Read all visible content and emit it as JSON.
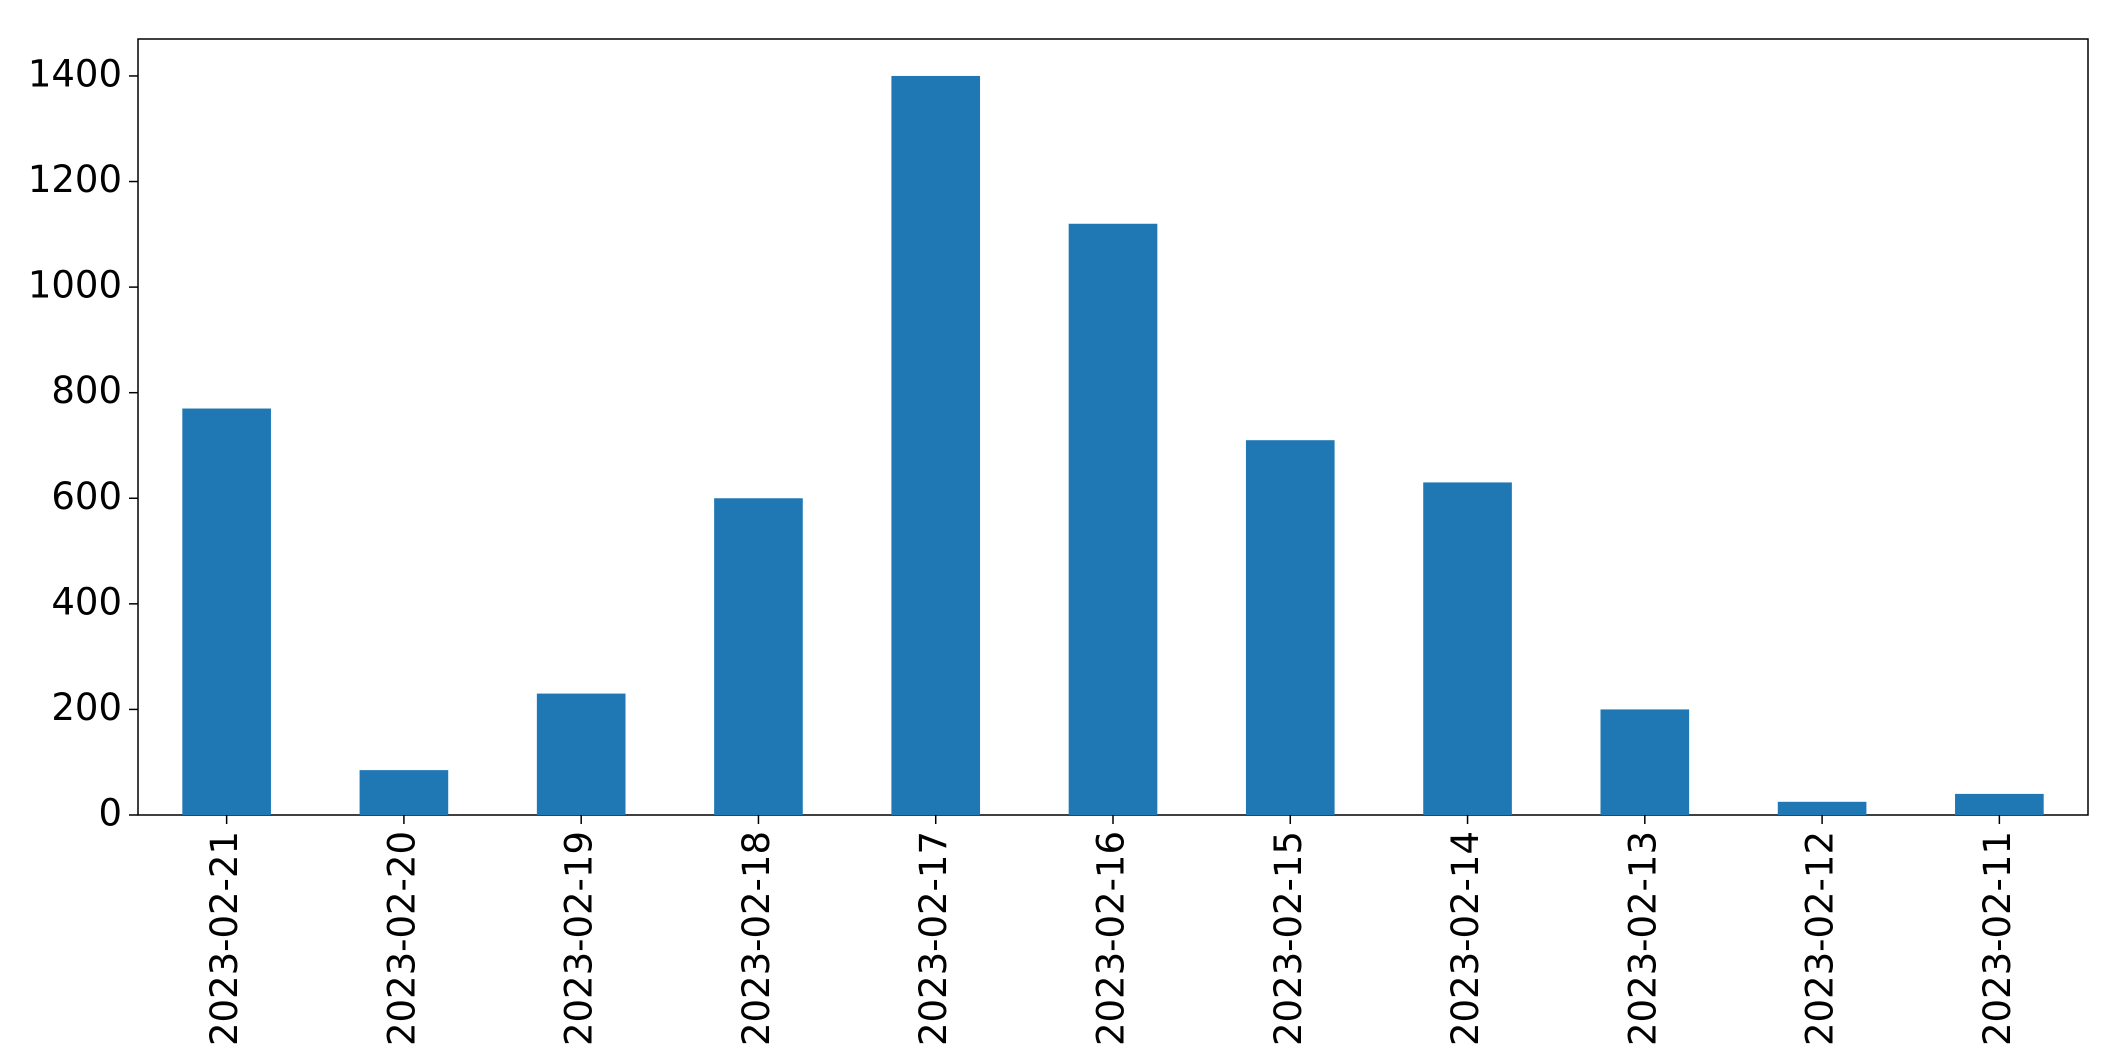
{
  "chart_data": {
    "type": "bar",
    "categories": [
      "2023-02-21",
      "2023-02-20",
      "2023-02-19",
      "2023-02-18",
      "2023-02-17",
      "2023-02-16",
      "2023-02-15",
      "2023-02-14",
      "2023-02-13",
      "2023-02-12",
      "2023-02-11"
    ],
    "values": [
      770,
      85,
      230,
      600,
      1400,
      1120,
      710,
      630,
      200,
      25,
      40
    ],
    "color": "#1f77b4",
    "ylim": [
      0,
      1470
    ],
    "yticks": [
      0,
      200,
      400,
      600,
      800,
      1000,
      1200,
      1400
    ],
    "grid": false
  }
}
